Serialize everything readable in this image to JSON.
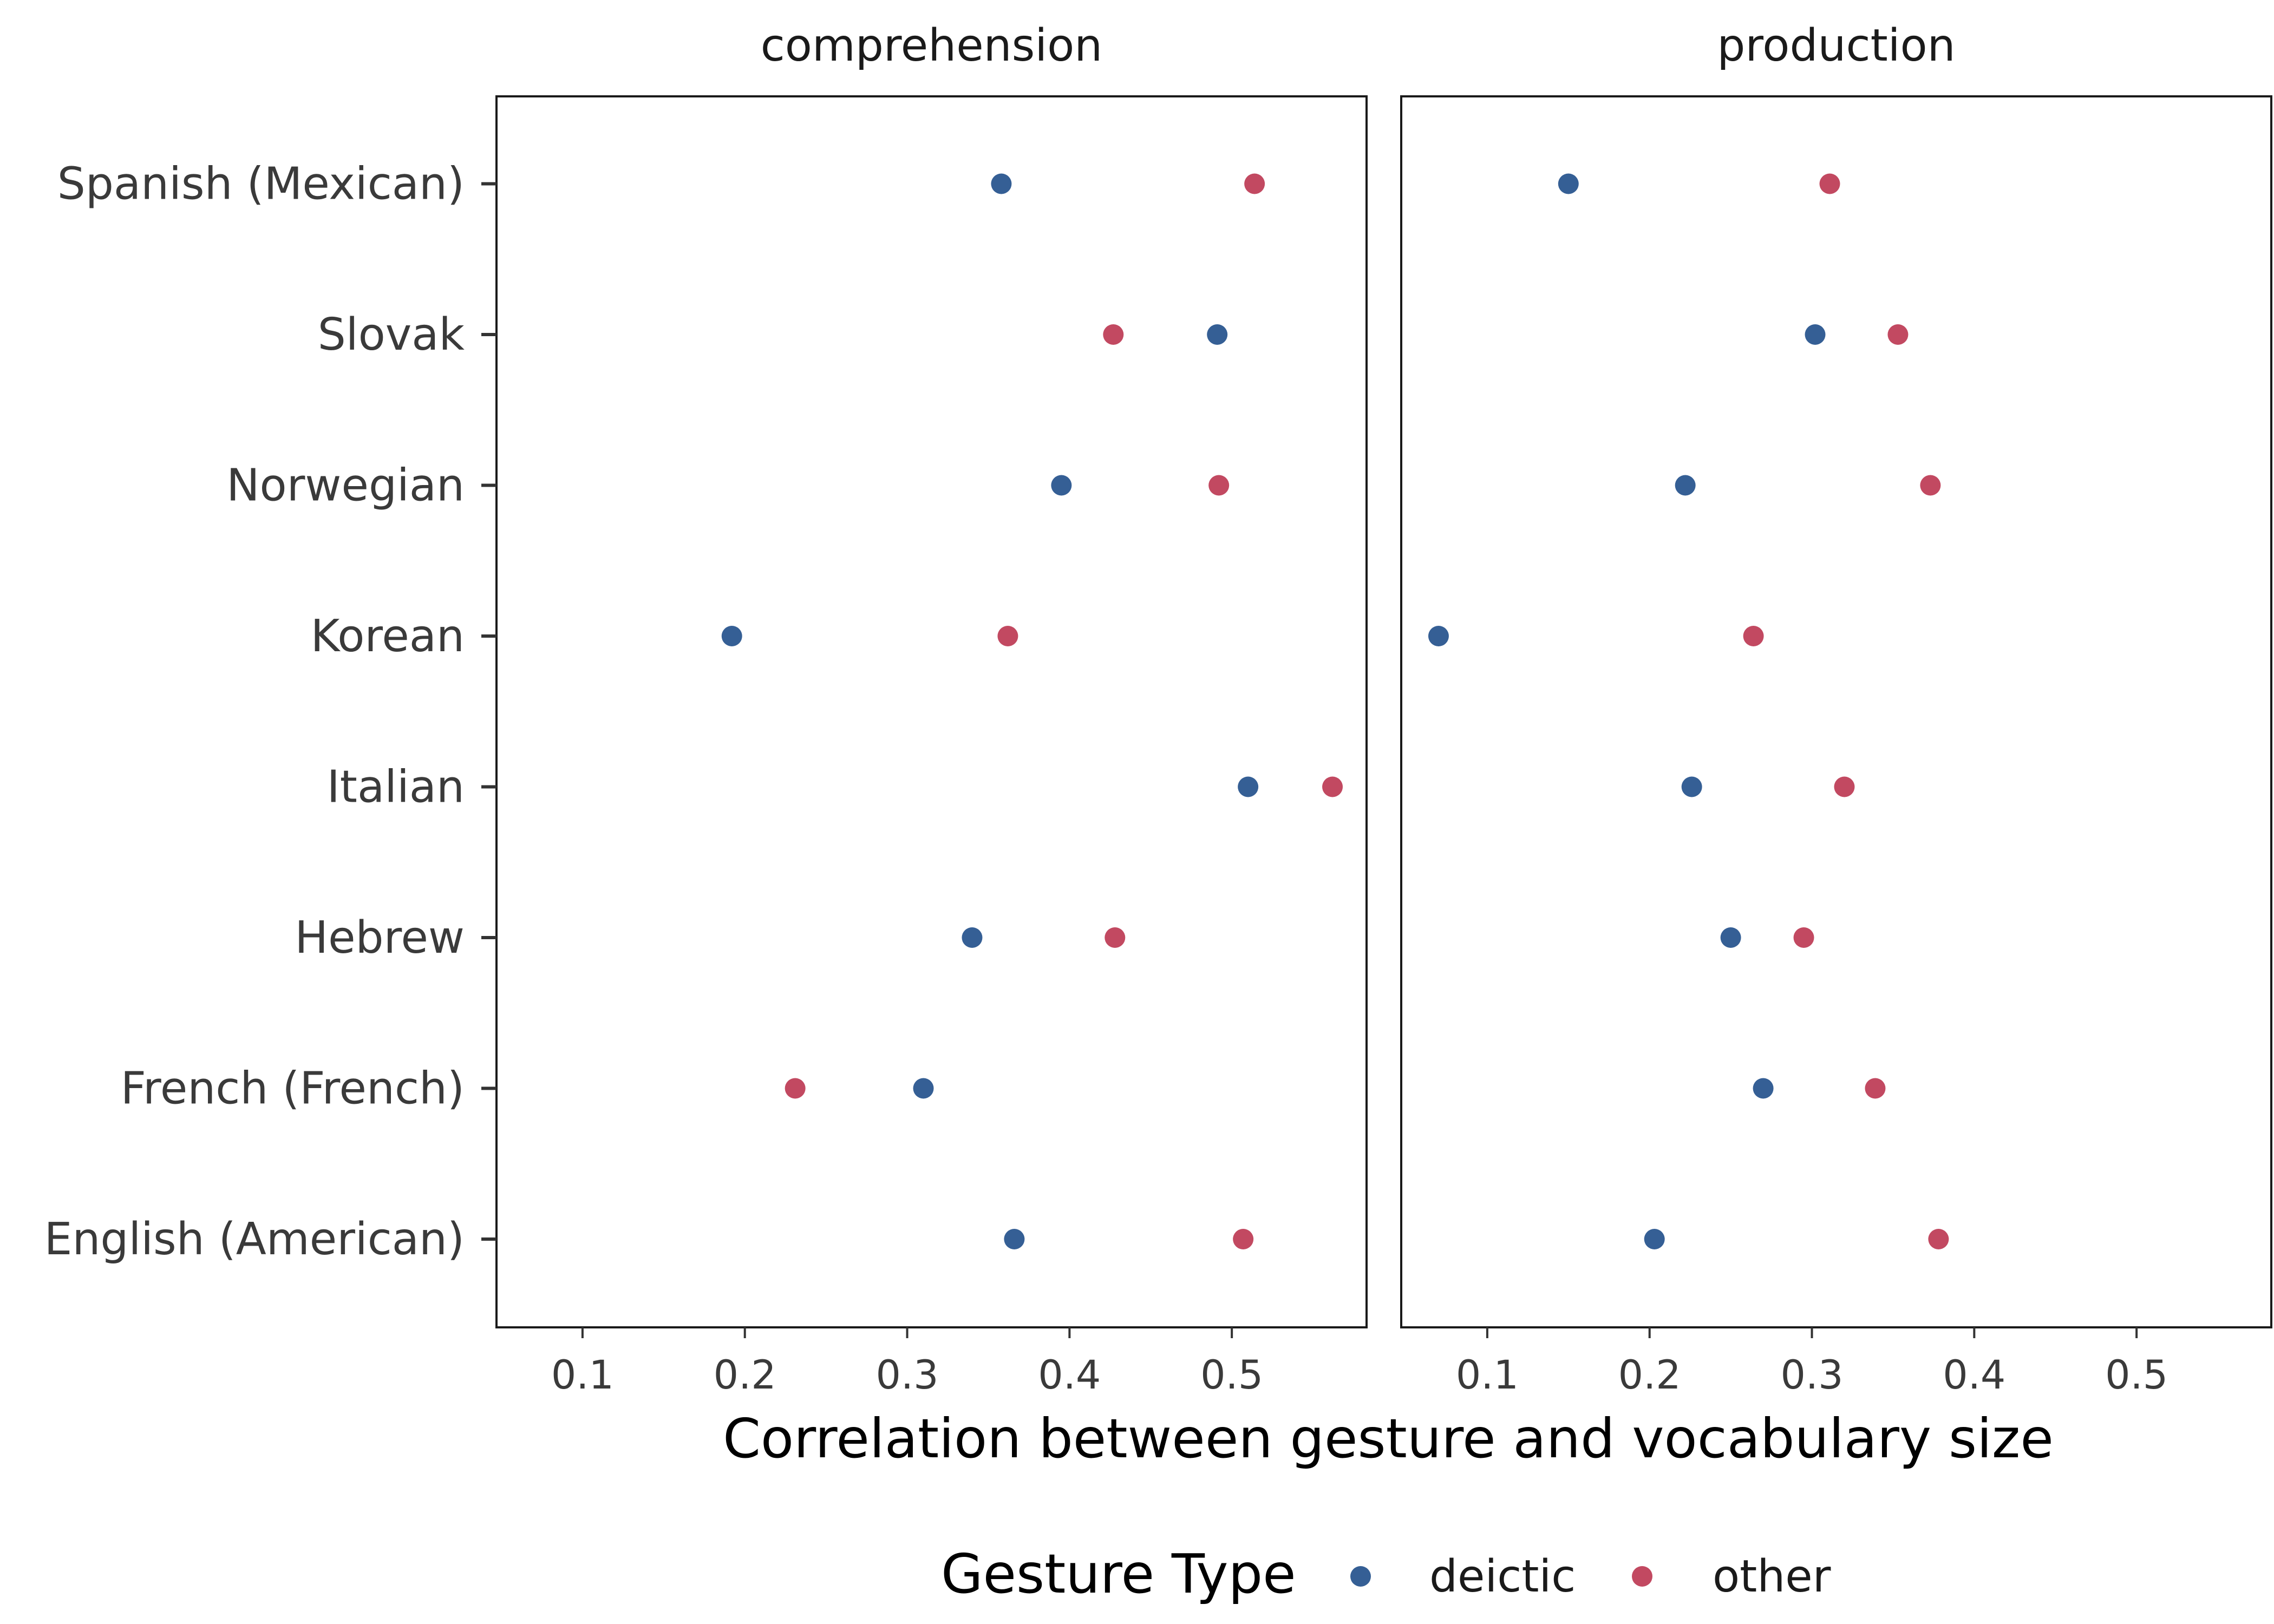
{
  "chart_data": {
    "type": "scatter",
    "xlabel": "Correlation between gesture and vocabulary size",
    "categories": [
      "English (American)",
      "French (French)",
      "Hebrew",
      "Italian",
      "Korean",
      "Norwegian",
      "Slovak",
      "Spanish (Mexican)"
    ],
    "x_ticks": [
      "0.1",
      "0.2",
      "0.3",
      "0.4",
      "0.5"
    ],
    "xlim": [
      0.047,
      0.583
    ],
    "legend": {
      "title": "Gesture Type",
      "position": "bottom"
    },
    "grid": false,
    "series": [
      {
        "name": "deictic",
        "color": "#355f95"
      },
      {
        "name": "other",
        "color": "#c24961"
      }
    ],
    "panels": [
      {
        "title": "comprehension",
        "points": {
          "deictic": [
            0.366,
            0.31,
            0.34,
            0.51,
            0.192,
            0.395,
            0.491,
            0.358
          ],
          "other": [
            0.507,
            0.231,
            0.428,
            0.562,
            0.362,
            0.492,
            0.427,
            0.514
          ]
        }
      },
      {
        "title": "production",
        "points": {
          "deictic": [
            0.203,
            0.27,
            0.25,
            0.226,
            0.07,
            0.222,
            0.302,
            0.15
          ],
          "other": [
            0.378,
            0.339,
            0.295,
            0.32,
            0.264,
            0.373,
            0.353,
            0.311
          ]
        }
      }
    ]
  }
}
